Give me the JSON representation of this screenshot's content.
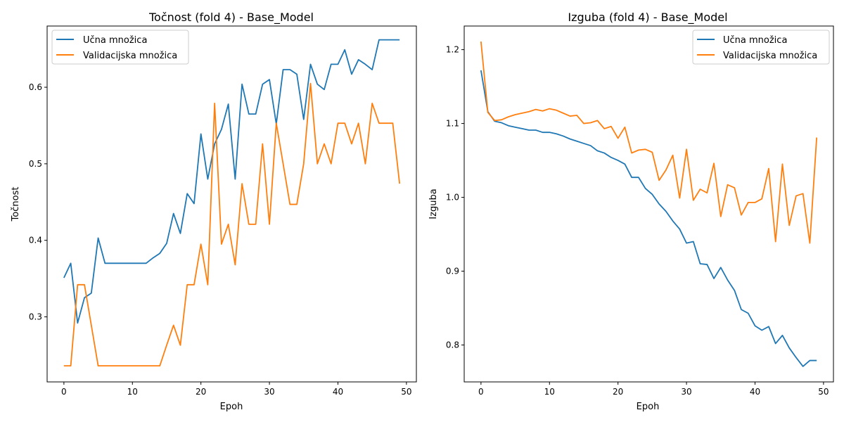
{
  "chart_data": [
    {
      "type": "line",
      "title": "Točnost (fold 4) - Base_Model",
      "xlabel": "Epoh",
      "ylabel": "Točnost",
      "xlim": [
        -2.45,
        51.45
      ],
      "ylim": [
        0.215,
        0.68
      ],
      "xticks": [
        0,
        10,
        20,
        30,
        40,
        50
      ],
      "yticks": [
        0.3,
        0.4,
        0.5,
        0.6
      ],
      "ytick_labels": [
        "0.3",
        "0.4",
        "0.5",
        "0.6"
      ],
      "grid": false,
      "legend_position": "upper-left",
      "x": [
        0,
        1,
        2,
        3,
        4,
        5,
        6,
        7,
        8,
        9,
        10,
        11,
        12,
        13,
        14,
        15,
        16,
        17,
        18,
        19,
        20,
        21,
        22,
        23,
        24,
        25,
        26,
        27,
        28,
        29,
        30,
        31,
        32,
        33,
        34,
        35,
        36,
        37,
        38,
        39,
        40,
        41,
        42,
        43,
        44,
        45,
        46,
        47,
        48,
        49
      ],
      "series": [
        {
          "name": "Učna množica",
          "color": "#1f77b4",
          "values": [
            0.351,
            0.37,
            0.292,
            0.325,
            0.331,
            0.403,
            0.37,
            0.37,
            0.37,
            0.37,
            0.37,
            0.37,
            0.37,
            0.377,
            0.383,
            0.396,
            0.435,
            0.409,
            0.461,
            0.448,
            0.539,
            0.48,
            0.526,
            0.545,
            0.578,
            0.48,
            0.604,
            0.565,
            0.565,
            0.604,
            0.61,
            0.552,
            0.623,
            0.623,
            0.617,
            0.558,
            0.63,
            0.604,
            0.597,
            0.63,
            0.63,
            0.649,
            0.617,
            0.636,
            0.63,
            0.623,
            0.662,
            0.662,
            0.662,
            0.662
          ]
        },
        {
          "name": "Validacijska množica",
          "color": "#ff7f0e",
          "values": [
            0.236,
            0.236,
            0.342,
            0.342,
            0.289,
            0.236,
            0.236,
            0.236,
            0.236,
            0.236,
            0.236,
            0.236,
            0.236,
            0.236,
            0.236,
            0.263,
            0.289,
            0.263,
            0.342,
            0.342,
            0.395,
            0.342,
            0.579,
            0.395,
            0.421,
            0.368,
            0.474,
            0.421,
            0.421,
            0.526,
            0.421,
            0.553,
            0.5,
            0.447,
            0.447,
            0.5,
            0.605,
            0.5,
            0.526,
            0.5,
            0.553,
            0.553,
            0.526,
            0.553,
            0.5,
            0.579,
            0.553,
            0.553,
            0.553,
            0.474
          ]
        }
      ]
    },
    {
      "type": "line",
      "title": "Izguba (fold 4) - Base_Model",
      "xlabel": "Epoh",
      "ylabel": "Izguba",
      "xlim": [
        -2.45,
        51.45
      ],
      "ylim": [
        0.75,
        1.232
      ],
      "xticks": [
        0,
        10,
        20,
        30,
        40,
        50
      ],
      "yticks": [
        0.8,
        0.9,
        1.0,
        1.1,
        1.2
      ],
      "ytick_labels": [
        "0.8",
        "0.9",
        "1.0",
        "1.1",
        "1.2"
      ],
      "grid": false,
      "legend_position": "upper-right",
      "x": [
        0,
        1,
        2,
        3,
        4,
        5,
        6,
        7,
        8,
        9,
        10,
        11,
        12,
        13,
        14,
        15,
        16,
        17,
        18,
        19,
        20,
        21,
        22,
        23,
        24,
        25,
        26,
        27,
        28,
        29,
        30,
        31,
        32,
        33,
        34,
        35,
        36,
        37,
        38,
        39,
        40,
        41,
        42,
        43,
        44,
        45,
        46,
        47,
        48,
        49
      ],
      "series": [
        {
          "name": "Učna množica",
          "color": "#1f77b4",
          "values": [
            1.172,
            1.116,
            1.103,
            1.101,
            1.097,
            1.095,
            1.093,
            1.091,
            1.091,
            1.088,
            1.088,
            1.086,
            1.083,
            1.079,
            1.076,
            1.073,
            1.07,
            1.063,
            1.06,
            1.054,
            1.05,
            1.045,
            1.027,
            1.027,
            1.012,
            1.004,
            0.991,
            0.981,
            0.968,
            0.957,
            0.938,
            0.94,
            0.91,
            0.909,
            0.89,
            0.905,
            0.888,
            0.874,
            0.848,
            0.843,
            0.826,
            0.82,
            0.825,
            0.802,
            0.813,
            0.796,
            0.783,
            0.771,
            0.779,
            0.779
          ]
        },
        {
          "name": "Validacijska množica",
          "color": "#ff7f0e",
          "values": [
            1.211,
            1.115,
            1.104,
            1.105,
            1.109,
            1.112,
            1.114,
            1.116,
            1.119,
            1.117,
            1.12,
            1.118,
            1.114,
            1.11,
            1.111,
            1.1,
            1.101,
            1.104,
            1.093,
            1.096,
            1.08,
            1.095,
            1.06,
            1.064,
            1.065,
            1.061,
            1.023,
            1.037,
            1.057,
            0.999,
            1.065,
            0.996,
            1.011,
            1.006,
            1.046,
            0.974,
            1.017,
            1.013,
            0.976,
            0.993,
            0.993,
            0.998,
            1.039,
            0.94,
            1.045,
            0.962,
            1.002,
            1.005,
            0.938,
            1.081
          ]
        }
      ]
    }
  ]
}
